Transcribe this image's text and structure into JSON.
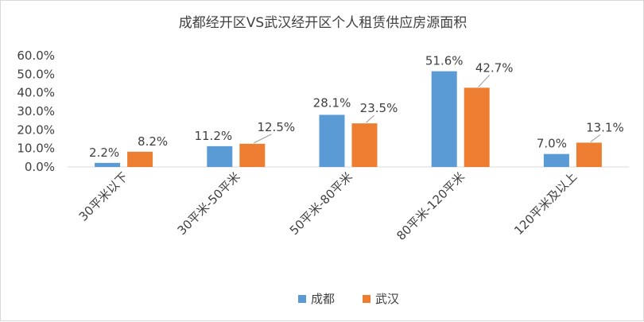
{
  "chart_data": {
    "type": "bar",
    "title": "成都经开区VS武汉经开区个人租赁供应房源面积",
    "categories": [
      "30平米以下",
      "30平米-50平米",
      "50平米-80平米",
      "80平米-120平米",
      "120平米及以上"
    ],
    "series": [
      {
        "name": "成都",
        "color": "#5b9bd5",
        "values": [
          2.2,
          11.2,
          28.1,
          51.6,
          7.0
        ],
        "labels": [
          "2.2%",
          "11.2%",
          "28.1%",
          "51.6%",
          "7.0%"
        ]
      },
      {
        "name": "武汉",
        "color": "#ed7d31",
        "values": [
          8.2,
          12.5,
          23.5,
          42.7,
          13.1
        ],
        "labels": [
          "8.2%",
          "12.5%",
          "23.5%",
          "42.7%",
          "13.1%"
        ]
      }
    ],
    "yticks": [
      "0.0%",
      "10.0%",
      "20.0%",
      "30.0%",
      "40.0%",
      "50.0%",
      "60.0%"
    ],
    "ylim": [
      0,
      60
    ],
    "grid": false,
    "legend_position": "bottom"
  }
}
